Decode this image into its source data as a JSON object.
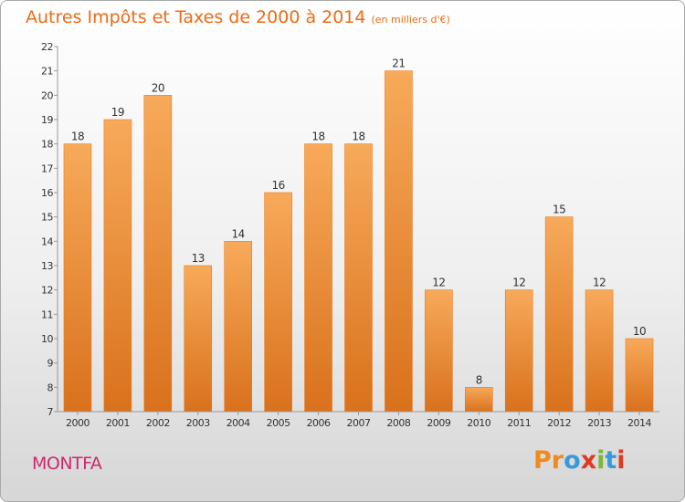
{
  "header": {
    "title": "Autres Impôts et Taxes de 2000 à 2014",
    "subtitle": "(en milliers d'€)"
  },
  "footer": {
    "commune": "MONTFA",
    "logo_text": "Proxiti"
  },
  "colors": {
    "accent": "#ee6a14",
    "commune": "#cc2a6c",
    "bar_top": "#f7aa5a",
    "bar_bottom": "#d9711c"
  },
  "chart_data": {
    "type": "bar",
    "categories": [
      "2000",
      "2001",
      "2002",
      "2003",
      "2004",
      "2005",
      "2006",
      "2007",
      "2008",
      "2009",
      "2010",
      "2011",
      "2012",
      "2013",
      "2014"
    ],
    "values": [
      18,
      19,
      20,
      13,
      14,
      16,
      18,
      18,
      21,
      12,
      8,
      12,
      15,
      12,
      10
    ],
    "title": "Autres Impôts et Taxes de 2000 à 2014",
    "xlabel": "",
    "ylabel": "",
    "ylim": [
      7,
      22
    ],
    "yticks": [
      "7",
      "8",
      "9",
      "10",
      "11",
      "12",
      "13",
      "14",
      "15",
      "16",
      "17",
      "18",
      "19",
      "20",
      "21",
      "22"
    ],
    "grid": false,
    "legend": "none"
  }
}
